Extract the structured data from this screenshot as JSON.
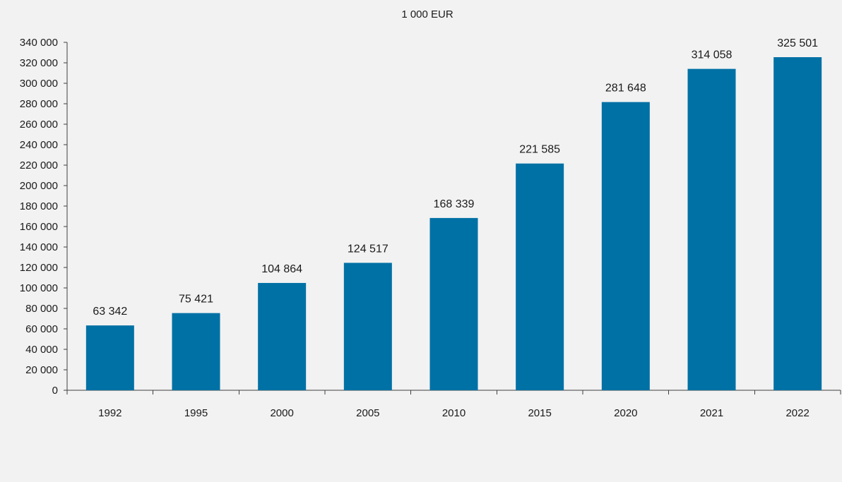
{
  "chart_data": {
    "type": "bar",
    "title": "",
    "unit_label": "1 000 EUR",
    "xlabel": "",
    "ylabel": "",
    "categories": [
      "1992",
      "1995",
      "2000",
      "2005",
      "2010",
      "2015",
      "2020",
      "2021",
      "2022"
    ],
    "values": [
      63342,
      75421,
      104864,
      124517,
      168339,
      221585,
      281648,
      314058,
      325501
    ],
    "value_labels": [
      "63 342",
      "75 421",
      "104 864",
      "124 517",
      "168 339",
      "221 585",
      "281 648",
      "314 058",
      "325 501"
    ],
    "ylim": [
      0,
      340000
    ],
    "y_ticks": [
      0,
      20000,
      40000,
      60000,
      80000,
      100000,
      120000,
      140000,
      160000,
      180000,
      200000,
      220000,
      240000,
      260000,
      280000,
      300000,
      320000,
      340000
    ],
    "y_tick_labels": [
      "0",
      "20 000",
      "40 000",
      "60 000",
      "80 000",
      "100 000",
      "120 000",
      "140 000",
      "160 000",
      "180 000",
      "200 000",
      "220 000",
      "240 000",
      "260 000",
      "280 000",
      "300 000",
      "320 000",
      "340 000"
    ],
    "grid": false,
    "legend": "none",
    "bar_color": "#0071a5",
    "background_color": "#f2f2f2"
  }
}
